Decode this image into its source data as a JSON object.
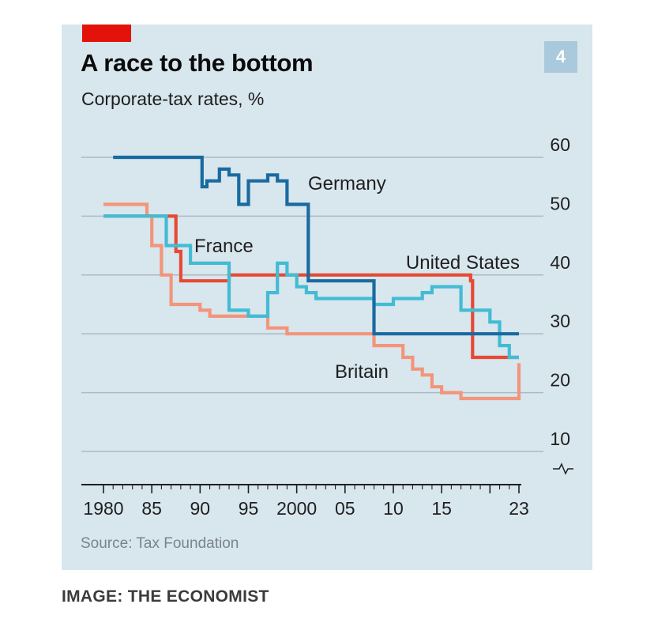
{
  "header": {
    "title": "A race to the bottom",
    "subtitle": "Corporate-tax rates, %",
    "badge": "4"
  },
  "footer": {
    "source": "Source: Tax Foundation",
    "credit": "IMAGE: THE ECONOMIST"
  },
  "colors": {
    "panel_background": "#d8e6ee",
    "accent_red": "#e3120b",
    "badge": "#a9c9dc",
    "gridline": "#aeb9c0"
  },
  "chart_data": {
    "type": "line",
    "step": true,
    "title": "A race to the bottom",
    "subtitle": "Corporate-tax rates, %",
    "xlabel": "",
    "ylabel": "",
    "xlim": [
      1980,
      2023
    ],
    "ylim": [
      0,
      60
    ],
    "y_axis_broken": true,
    "y_ticks": [
      10,
      20,
      30,
      40,
      50,
      60
    ],
    "x_tick_labels": [
      {
        "x": 1980,
        "label": "1980"
      },
      {
        "x": 1985,
        "label": "85"
      },
      {
        "x": 1990,
        "label": "90"
      },
      {
        "x": 1995,
        "label": "95"
      },
      {
        "x": 2000,
        "label": "2000"
      },
      {
        "x": 2005,
        "label": "05"
      },
      {
        "x": 2010,
        "label": "10"
      },
      {
        "x": 2015,
        "label": "15"
      },
      {
        "x": 2023,
        "label": "23"
      }
    ],
    "grid": "horizontal",
    "series": [
      {
        "name": "Germany",
        "color": "#1a6aa0",
        "x": [
          1981,
          1990,
          1990.2,
          1990.7,
          1991,
          1992,
          1993,
          1994,
          1995,
          1996,
          1997,
          1998,
          1999,
          2001,
          2001.2,
          2003,
          2004,
          2008,
          2023
        ],
        "y": [
          60,
          60,
          55,
          56,
          56,
          58,
          57,
          52,
          56,
          56,
          57,
          56,
          52,
          52,
          39,
          39,
          39,
          30,
          30
        ]
      },
      {
        "name": "France",
        "color": "#43bcd3",
        "x": [
          1980,
          1986,
          1986.5,
          1988,
          1989,
          1992,
          1993,
          1995,
          1997,
          1998,
          1999,
          2000,
          2001,
          2002,
          2008,
          2010,
          2011,
          2013,
          2014,
          2016,
          2017,
          2019,
          2020,
          2021,
          2022,
          2023
        ],
        "y": [
          50,
          50,
          45,
          45,
          42,
          42,
          34,
          33,
          37,
          42,
          40,
          38,
          37,
          36,
          35,
          36,
          36,
          37,
          38,
          38,
          34,
          34,
          32,
          28,
          26,
          26
        ]
      },
      {
        "name": "United States",
        "color": "#e64a34",
        "x": [
          1980,
          1987,
          1987.5,
          1988,
          1993,
          2018,
          2018.2,
          2023
        ],
        "y": [
          50,
          50,
          44,
          39,
          40,
          39,
          26,
          26
        ]
      },
      {
        "name": "Britain",
        "color": "#f3957b",
        "x": [
          1980,
          1984,
          1984.5,
          1985,
          1986,
          1987,
          1989,
          1990,
          1991,
          1997,
          1999,
          2008,
          2011,
          2012,
          2013,
          2014,
          2015,
          2016,
          2017,
          2023
        ],
        "y": [
          52,
          52,
          50,
          45,
          40,
          35,
          35,
          34,
          33,
          31,
          30,
          28,
          26,
          24,
          23,
          21,
          20,
          20,
          19,
          25
        ]
      }
    ],
    "labels": [
      "Germany",
      "France",
      "United States",
      "Britain"
    ]
  }
}
